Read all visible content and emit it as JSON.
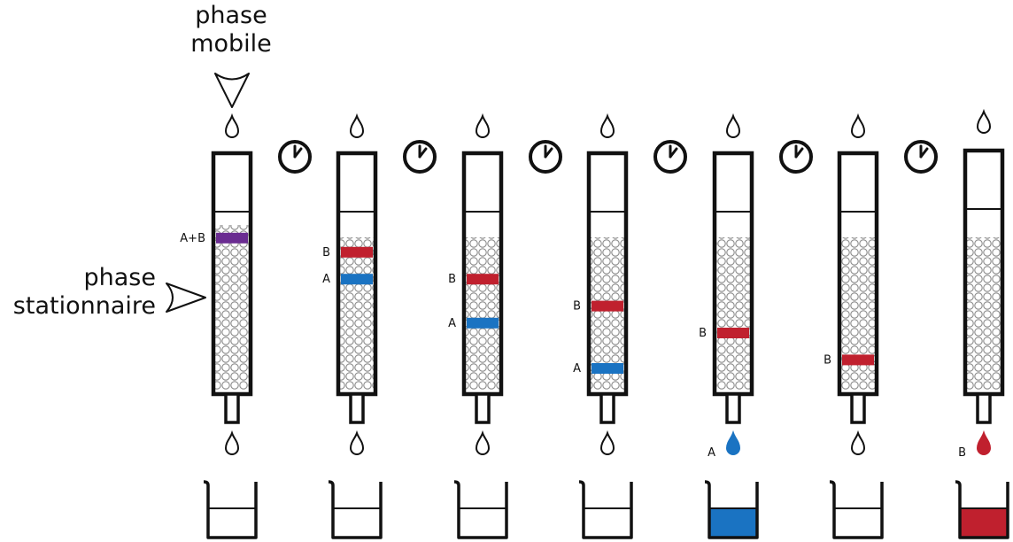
{
  "labels": {
    "mobile_phase": [
      "phase",
      "mobile"
    ],
    "stationary_phase": [
      "phase",
      "stationnaire"
    ]
  },
  "colors": {
    "A": "#1a73c2",
    "B": "#c0202e",
    "A+B": "#6a2c91",
    "outline": "#111111",
    "bead": "#888888"
  },
  "icons": {
    "drop": "drop-icon",
    "timer": "clock-icon",
    "beaker": "beaker-icon",
    "arrow": "arrow-icon"
  },
  "columns": [
    {
      "step": 1,
      "bands": [
        {
          "label": "A+B",
          "pos": 0.03,
          "color": "A+B"
        }
      ],
      "bottom_drop": "empty",
      "beaker_fill": null
    },
    {
      "step": 2,
      "bands": [
        {
          "label": "B",
          "pos": 0.13,
          "color": "B"
        },
        {
          "label": "A",
          "pos": 0.32,
          "color": "A"
        }
      ],
      "bottom_drop": "empty",
      "beaker_fill": null
    },
    {
      "step": 3,
      "bands": [
        {
          "label": "B",
          "pos": 0.32,
          "color": "B"
        },
        {
          "label": "A",
          "pos": 0.63,
          "color": "A"
        }
      ],
      "bottom_drop": "empty",
      "beaker_fill": null
    },
    {
      "step": 4,
      "bands": [
        {
          "label": "B",
          "pos": 0.51,
          "color": "B"
        },
        {
          "label": "A",
          "pos": 0.95,
          "color": "A"
        }
      ],
      "bottom_drop": "empty",
      "beaker_fill": null
    },
    {
      "step": 5,
      "bands": [
        {
          "label": "B",
          "pos": 0.7,
          "color": "B"
        }
      ],
      "bottom_drop": "A",
      "beaker_fill": "A"
    },
    {
      "step": 6,
      "bands": [
        {
          "label": "B",
          "pos": 0.89,
          "color": "B"
        }
      ],
      "bottom_drop": "empty",
      "beaker_fill": null
    },
    {
      "step": 7,
      "bands": [],
      "bottom_drop": "B",
      "beaker_fill": "B"
    }
  ]
}
